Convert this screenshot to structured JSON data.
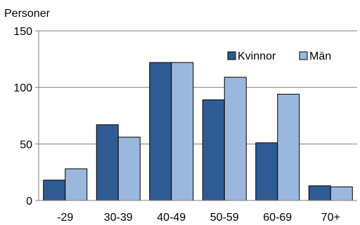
{
  "chart_data": {
    "type": "bar",
    "ylabel": "Personer",
    "categories": [
      "-29",
      "30-39",
      "40-49",
      "50-59",
      "60-69",
      "70+"
    ],
    "series": [
      {
        "name": "Kvinnor",
        "values": [
          18,
          67,
          122,
          89,
          51,
          13
        ],
        "color": "#2f5b94"
      },
      {
        "name": "Män",
        "values": [
          28,
          56,
          122,
          109,
          94,
          12
        ],
        "color": "#9ab8de"
      }
    ],
    "ylim": [
      0,
      150
    ],
    "yticks": [
      0,
      50,
      100,
      150
    ],
    "grid": true,
    "legend": "top-right"
  }
}
